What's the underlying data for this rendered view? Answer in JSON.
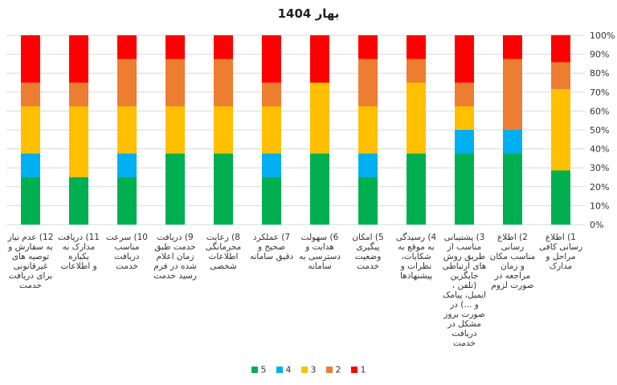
{
  "chart_data": {
    "type": "bar",
    "stacked": true,
    "percent": true,
    "title": "بهار 1404",
    "xlabel": "",
    "ylabel": "",
    "ylim": [
      0,
      100
    ],
    "yticks": [
      "0%",
      "10%",
      "20%",
      "30%",
      "40%",
      "50%",
      "60%",
      "70%",
      "80%",
      "90%",
      "100%"
    ],
    "grid": true,
    "legend_position": "bottom",
    "categories": [
      [
        "1) اطلاع",
        "رسانی کافی",
        "مراحل و",
        "مدارک"
      ],
      [
        "2) اطلاع",
        "رسانی",
        "مناسب مکان",
        "و زمان",
        "مراجعه در",
        "صورت لزوم"
      ],
      [
        "3) پشتیبانی",
        "مناسب از",
        "طریق روش",
        "های ارتباطی",
        "جایگزین",
        "(تلفن ،",
        "ایمیل، پیامک",
        "و ...) در",
        "صورت بروز",
        "مشکل در",
        "دریافت",
        "خدمت"
      ],
      [
        "4) رسیدگی",
        "به موقع به",
        "شکایات،",
        "نظرات و",
        "پیشنهادها"
      ],
      [
        "5) امکان",
        "پیگیری",
        "وضعیت",
        "خدمت"
      ],
      [
        "6) سهولت",
        "هدایت و",
        "دسترسی به",
        "سامانه"
      ],
      [
        "7) عملکرد",
        "صحیح و",
        "دقیق سامانه"
      ],
      [
        "8) رعایت",
        "محرمانگی",
        "اطلاعات",
        "شخصی"
      ],
      [
        "9) دریافت",
        "خدمت طبق",
        "زمان اعلام",
        "شده در فرم",
        "رسید خدمت"
      ],
      [
        "10) سرعت",
        "مناسب",
        "دریافت",
        "خدمت"
      ],
      [
        "11) دریافت",
        "مدارک به",
        "یکباره",
        "و اطلاعات"
      ],
      [
        "12) عدم نیاز",
        "به سفارش و",
        "توصیه های",
        "غیرقانونی",
        "برای دریافت",
        "خدمت"
      ]
    ],
    "series": [
      {
        "name": "5",
        "color": "#00b050",
        "values": [
          28.6,
          37.5,
          37.5,
          37.5,
          25,
          37.5,
          25,
          37.5,
          37.5,
          25,
          25,
          25
        ]
      },
      {
        "name": "4",
        "color": "#00b0f0",
        "values": [
          0,
          12.5,
          12.5,
          0,
          12.5,
          0,
          12.5,
          0,
          0,
          12.5,
          0,
          12.5
        ]
      },
      {
        "name": "3",
        "color": "#ffc000",
        "values": [
          42.9,
          0,
          12.5,
          37.5,
          25,
          37.5,
          25,
          25,
          25,
          25,
          37.5,
          25
        ]
      },
      {
        "name": "2",
        "color": "#ed7d31",
        "values": [
          14.3,
          37.5,
          12.5,
          12.5,
          25,
          0,
          12.5,
          25,
          25,
          25,
          12.5,
          12.5
        ]
      },
      {
        "name": "1",
        "color": "#ff0000",
        "values": [
          14.3,
          12.5,
          25,
          12.5,
          12.5,
          25,
          25,
          12.5,
          12.5,
          12.5,
          25,
          25
        ]
      }
    ]
  }
}
